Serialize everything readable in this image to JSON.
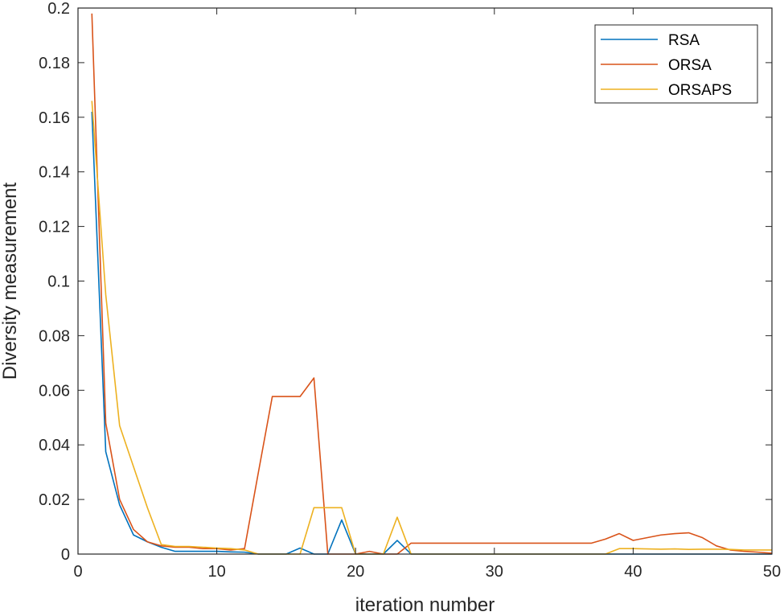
{
  "chart_data": {
    "type": "line",
    "title": "",
    "xlabel": "iteration number",
    "ylabel": "Diversity measurement",
    "xlim": [
      0,
      50
    ],
    "ylim": [
      0,
      0.2
    ],
    "xticks": [
      0,
      10,
      20,
      30,
      40,
      50
    ],
    "yticks": [
      0,
      0.02,
      0.04,
      0.06,
      0.08,
      0.1,
      0.12,
      0.14,
      0.16,
      0.18,
      0.2
    ],
    "xtick_labels": [
      "0",
      "10",
      "20",
      "30",
      "40",
      "50"
    ],
    "ytick_labels": [
      "0",
      "0.02",
      "0.04",
      "0.06",
      "0.08",
      "0.1",
      "0.12",
      "0.14",
      "0.16",
      "0.18",
      "0.2"
    ],
    "grid": false,
    "legend_position": "top-right",
    "x": [
      1,
      2,
      3,
      4,
      5,
      6,
      7,
      8,
      9,
      10,
      11,
      12,
      13,
      14,
      15,
      16,
      17,
      18,
      19,
      20,
      21,
      22,
      23,
      24,
      25,
      26,
      27,
      28,
      29,
      30,
      31,
      32,
      33,
      34,
      35,
      36,
      37,
      38,
      39,
      40,
      41,
      42,
      43,
      44,
      45,
      46,
      47,
      48,
      49,
      50
    ],
    "series": [
      {
        "name": "RSA",
        "color": "#0072BD",
        "values": [
          0.162,
          0.0375,
          0.018,
          0.007,
          0.0045,
          0.0025,
          0.001,
          0.001,
          0.001,
          0.001,
          0.0008,
          0.0007,
          0,
          0,
          0,
          0.0022,
          0,
          0,
          0.0125,
          0,
          0,
          0,
          0.005,
          0,
          0,
          0,
          0,
          0,
          0,
          0,
          0,
          0,
          0,
          0,
          0,
          0,
          0,
          0,
          0,
          0,
          0,
          0,
          0,
          0,
          0,
          0,
          0,
          0,
          0,
          0
        ]
      },
      {
        "name": "ORSA",
        "color": "#D95319",
        "values": [
          0.198,
          0.048,
          0.02,
          0.009,
          0.0045,
          0.003,
          0.0025,
          0.0025,
          0.002,
          0.002,
          0.0015,
          0.002,
          0.03,
          0.0577,
          0.0577,
          0.0577,
          0.0645,
          0,
          0,
          0,
          0.001,
          0,
          0,
          0.004,
          0.004,
          0.004,
          0.004,
          0.004,
          0.004,
          0.004,
          0.004,
          0.004,
          0.004,
          0.004,
          0.004,
          0.004,
          0.004,
          0.0055,
          0.0075,
          0.005,
          0.006,
          0.007,
          0.0075,
          0.0078,
          0.006,
          0.003,
          0.0015,
          0.001,
          0.0007,
          0.0003
        ]
      },
      {
        "name": "ORSAPS",
        "color": "#EDB120",
        "values": [
          0.166,
          0.095,
          0.047,
          0.032,
          0.017,
          0.0035,
          0.0028,
          0.0028,
          0.0025,
          0.0022,
          0.002,
          0.0015,
          0,
          0,
          0,
          0,
          0.017,
          0.017,
          0.017,
          0,
          0,
          0,
          0.0135,
          0,
          0,
          0,
          0,
          0,
          0,
          0,
          0,
          0,
          0,
          0,
          0,
          0,
          0,
          0,
          0.002,
          0.002,
          0.0019,
          0.0018,
          0.0019,
          0.0017,
          0.0018,
          0.0018,
          0.0017,
          0.0015,
          0.0015,
          0.0015
        ]
      }
    ]
  }
}
